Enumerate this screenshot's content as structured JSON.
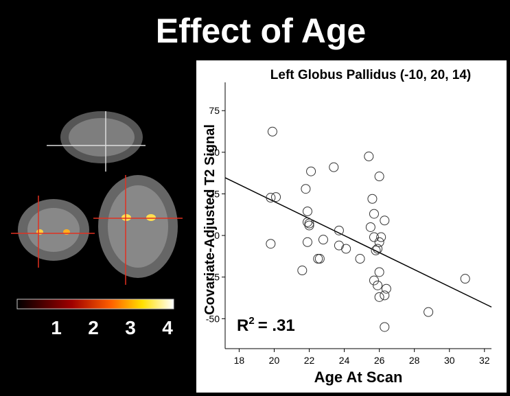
{
  "title": "Effect of Age",
  "colorbar": {
    "labels": [
      "1",
      "2",
      "3",
      "4"
    ]
  },
  "chart_data": {
    "type": "scatter",
    "title": "Left Globus Pallidus (-10, 20, 14)",
    "x_label": "Age At Scan",
    "y_label": "Covariate-Adjusted T2 Signal",
    "annotation": {
      "base": "R",
      "sup": "2",
      "rest": "= .31"
    },
    "xlim": [
      17.2,
      32.4
    ],
    "ylim": [
      -68,
      92
    ],
    "xticks": [
      18,
      20,
      22,
      24,
      26,
      28,
      30,
      32
    ],
    "yticks": [
      -50,
      -25,
      0,
      25,
      50,
      75
    ],
    "fit_line": {
      "x": [
        17.2,
        32.4
      ],
      "y": [
        34.7,
        -43
      ]
    },
    "x": [
      19.9,
      19.8,
      20.1,
      19.8,
      21.8,
      21.9,
      21.9,
      22.0,
      22.1,
      22.8,
      23.4,
      22.0,
      21.9,
      22.5,
      21.6,
      22.6,
      23.7,
      23.7,
      24.1,
      24.9,
      25.4,
      25.6,
      25.7,
      25.5,
      25.7,
      25.9,
      25.8,
      26.0,
      26.0,
      26.1,
      26.3,
      25.7,
      25.9,
      26.0,
      26.0,
      26.3,
      26.4,
      26.3,
      28.8,
      30.9
    ],
    "values": [
      62.4,
      22.7,
      23.1,
      -5,
      28,
      14.5,
      8,
      7.2,
      38.5,
      -2.5,
      41,
      6,
      -4,
      -14,
      -21,
      -14,
      3,
      -6,
      -8,
      -14,
      47.5,
      22,
      13,
      5,
      -1,
      -8,
      -9,
      35.5,
      -4,
      -1,
      9,
      -27,
      -30,
      -22,
      -37,
      -36,
      -32,
      -55,
      -46,
      -26
    ],
    "marker_color": "#333333",
    "line_color": "#000000"
  }
}
